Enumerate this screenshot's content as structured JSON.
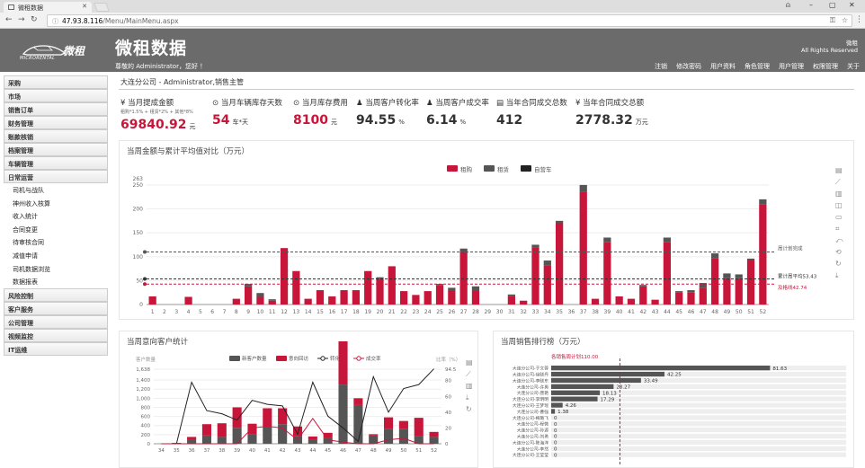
{
  "browser": {
    "tab_title": "微租数据",
    "url_host": "47.93.8.116",
    "url_path": "/Menu/MainMenu.aspx"
  },
  "header": {
    "logo_word": "微租",
    "logo_small": "MICRORENTAL",
    "title": "微租数据",
    "greeting": "尊敬的 Administrator，您好 ！",
    "brand": "微租",
    "copyright": "All Rights Reserved",
    "nav": [
      "注销",
      "修改密码",
      "用户资料",
      "角色管理",
      "用户管理",
      "权限管理",
      "关于"
    ]
  },
  "sidebar": {
    "items": [
      {
        "label": "采购",
        "type": "group"
      },
      {
        "label": "市场",
        "type": "group"
      },
      {
        "label": "销售订单",
        "type": "group"
      },
      {
        "label": "财务管理",
        "type": "group"
      },
      {
        "label": "账款核销",
        "type": "group"
      },
      {
        "label": "档案管理",
        "type": "group"
      },
      {
        "label": "车辆管理",
        "type": "group"
      },
      {
        "label": "日常运营",
        "type": "group"
      },
      {
        "label": "司机与战队",
        "type": "sub"
      },
      {
        "label": "神州收入核算",
        "type": "sub"
      },
      {
        "label": "收入统计",
        "type": "sub"
      },
      {
        "label": "合同变更",
        "type": "sub"
      },
      {
        "label": "待审核合同",
        "type": "sub"
      },
      {
        "label": "减值申请",
        "type": "sub"
      },
      {
        "label": "司机数据浏览",
        "type": "sub"
      },
      {
        "label": "数据报表",
        "type": "sub"
      },
      {
        "label": "风险控制",
        "type": "group"
      },
      {
        "label": "客户服务",
        "type": "group"
      },
      {
        "label": "公司管理",
        "type": "group"
      },
      {
        "label": "视频监控",
        "type": "group"
      },
      {
        "label": "IT运维",
        "type": "group"
      }
    ]
  },
  "main": {
    "breadcrumb": "大连分公司 - Administrator,销售主管",
    "kpis": [
      {
        "icon": "¥",
        "label": "当月提成金额",
        "sub": "租购*1.5% + 租赁*2% + 其他*8%",
        "value": "69840.92",
        "unit": "元",
        "color": "#c8163b"
      },
      {
        "icon": "⊙",
        "label": "当月车辆库存天数",
        "value": "54",
        "unit": "车*天",
        "color": "#c8163b"
      },
      {
        "icon": "⊙",
        "label": "当月库存费用",
        "value": "8100",
        "unit": "元",
        "color": "#c8163b"
      },
      {
        "icon": "♟",
        "label": "当周客户转化率",
        "value": "94.55",
        "unit": "%",
        "color": "#333333"
      },
      {
        "icon": "♟",
        "label": "当周客户成交率",
        "value": "6.14",
        "unit": "%",
        "color": "#333333"
      },
      {
        "icon": "▤",
        "label": "当年合同成交总数",
        "value": "412",
        "unit": "",
        "color": "#333333"
      },
      {
        "icon": "¥",
        "label": "当年合同成交总额",
        "value": "2778.32",
        "unit": "万元",
        "color": "#333333"
      }
    ]
  },
  "colors": {
    "red": "#c8163b",
    "dark": "#555555",
    "black": "#222222",
    "header": "#6b6b6b"
  },
  "chart_data": [
    {
      "type": "bar",
      "title": "当周金额与累计平均值对比（万元）",
      "categories": [
        "1",
        "2",
        "3",
        "4",
        "5",
        "6",
        "7",
        "8",
        "9",
        "10",
        "11",
        "12",
        "13",
        "14",
        "15",
        "16",
        "17",
        "18",
        "19",
        "20",
        "21",
        "22",
        "23",
        "24",
        "25",
        "26",
        "27",
        "28",
        "29",
        "30",
        "31",
        "32",
        "33",
        "34",
        "35",
        "36",
        "37",
        "38",
        "39",
        "40",
        "41",
        "42",
        "43",
        "44",
        "45",
        "46",
        "47",
        "48",
        "49",
        "50",
        "51",
        "52"
      ],
      "series": [
        {
          "name": "租购",
          "color": "#c8163b",
          "values": [
            17,
            0,
            0,
            16,
            0,
            0,
            0,
            12,
            38,
            16,
            8,
            118,
            70,
            12,
            30,
            17,
            30,
            30,
            70,
            54,
            80,
            28,
            20,
            28,
            40,
            30,
            110,
            30,
            0,
            0,
            18,
            8,
            120,
            82,
            170,
            0,
            235,
            12,
            130,
            17,
            12,
            38,
            10,
            130,
            25,
            25,
            35,
            97,
            55,
            55,
            93,
            210
          ]
        },
        {
          "name": "租赁",
          "color": "#555555",
          "values": [
            0,
            0,
            0,
            0,
            0,
            0,
            0,
            0,
            5,
            8,
            3,
            0,
            0,
            0,
            0,
            0,
            0,
            0,
            0,
            3,
            0,
            0,
            0,
            0,
            3,
            5,
            7,
            8,
            0,
            0,
            3,
            0,
            5,
            10,
            5,
            0,
            15,
            0,
            10,
            0,
            0,
            3,
            0,
            10,
            3,
            5,
            10,
            10,
            10,
            8,
            3,
            10
          ]
        },
        {
          "name": "自营车",
          "color": "#222222",
          "values": [
            0,
            0,
            0,
            0,
            0,
            0,
            0,
            0,
            0,
            0,
            0,
            0,
            0,
            0,
            0,
            0,
            0,
            0,
            0,
            0,
            0,
            0,
            0,
            0,
            0,
            0,
            0,
            0,
            0,
            0,
            0,
            0,
            0,
            0,
            0,
            0,
            0,
            0,
            0,
            0,
            0,
            0,
            0,
            0,
            0,
            0,
            0,
            0,
            0,
            0,
            0,
            0
          ]
        }
      ],
      "ylim": [
        0,
        263
      ],
      "yticks": [
        0,
        50,
        100,
        150,
        200,
        250,
        263
      ],
      "reference_lines": [
        {
          "label": "周计划完成",
          "value": 110,
          "color": "#555555"
        },
        {
          "label": "累计周平均53.43",
          "value": 53.43,
          "color": "#333333"
        },
        {
          "label": "及格线42.74",
          "value": 42.74,
          "color": "#c8163b"
        }
      ],
      "legend": "top-center"
    },
    {
      "type": "bar",
      "title": "当周意向客户统计",
      "ylabel": "客户数量",
      "y2label": "比率（%）",
      "categories": [
        "34",
        "35",
        "36",
        "37",
        "38",
        "39",
        "40",
        "41",
        "42",
        "43",
        "44",
        "45",
        "46",
        "47",
        "48",
        "49",
        "50",
        "51",
        "52"
      ],
      "series": [
        {
          "name": "新客户数量",
          "color": "#555555",
          "values": [
            0,
            0,
            80,
            180,
            150,
            350,
            200,
            380,
            430,
            170,
            80,
            120,
            1300,
            850,
            180,
            320,
            320,
            160,
            150
          ]
        },
        {
          "name": "意向回访",
          "color": "#c8163b",
          "values": [
            0,
            20,
            70,
            250,
            300,
            450,
            240,
            400,
            350,
            210,
            80,
            120,
            950,
            150,
            30,
            260,
            180,
            410,
            110
          ]
        },
        {
          "name": "转化率",
          "type": "line",
          "color": "#222222",
          "values": [
            0,
            0,
            78,
            42,
            38,
            30,
            55,
            50,
            48,
            12,
            78,
            35,
            20,
            3,
            85,
            40,
            70,
            75,
            95
          ]
        },
        {
          "name": "成交率",
          "type": "line",
          "color": "#c8163b",
          "values": [
            0,
            0,
            0,
            0,
            0,
            0,
            20,
            22,
            20,
            5,
            32,
            5,
            2,
            0,
            0,
            5,
            7,
            0,
            0
          ]
        }
      ],
      "ylim": [
        0,
        1638
      ],
      "yticks": [
        0,
        200,
        400,
        600,
        800,
        1000,
        1200,
        1400,
        1638
      ],
      "y2lim": [
        0,
        94.5
      ],
      "y2ticks": [
        0,
        20,
        40,
        60,
        80,
        94.5
      ],
      "legend": "top-center"
    },
    {
      "type": "bar",
      "orientation": "horizontal",
      "title": "当周销售排行榜（万元）",
      "annotation": "各销售周计划110.00",
      "categories": [
        "大连分公司-于文蓉",
        "大连分公司-徐晓丹",
        "大连分公司-李晓东",
        "大连分公司-许男",
        "大连分公司-唐艳",
        "大连分公司-李明明",
        "大连分公司-王梦瑶",
        "大连分公司-曹强",
        "大连分公司-梅璐飞",
        "大连分公司-程微",
        "大连分公司-孙源",
        "大连分公司-刘勇",
        "大连分公司-陈海洋",
        "大连分公司-李然",
        "大连分公司-王莹莹"
      ],
      "values": [
        81.63,
        42.25,
        33.49,
        23.27,
        18.13,
        17.29,
        4.26,
        1.38,
        0,
        0,
        0,
        0,
        0,
        0,
        0
      ],
      "value_labels": [
        "81.63",
        "42.25",
        "33.49",
        "23.27",
        "18.13",
        "17.29",
        "4.26",
        "1.38",
        "0",
        "0",
        "0",
        "0",
        "0",
        "0",
        "0"
      ],
      "xlim": [
        0,
        110
      ]
    }
  ]
}
